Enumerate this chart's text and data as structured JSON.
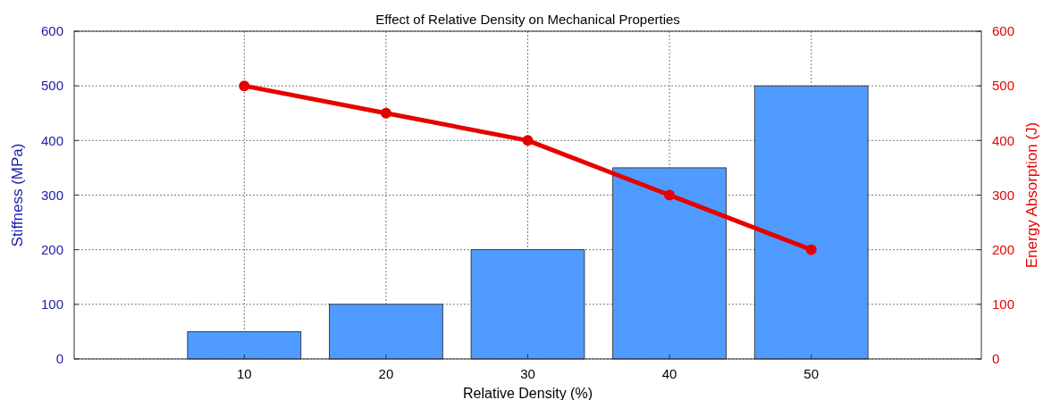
{
  "chart_data": {
    "type": "bar",
    "title": "Effect of Relative Density on Mechanical Properties",
    "xlabel": "Relative Density (%)",
    "ylabel": "Stiffness (MPa)",
    "y2label": "Energy Absorption (J)",
    "x": [
      10,
      20,
      30,
      40,
      50
    ],
    "xlim": [
      -2,
      62
    ],
    "xticks": [
      10,
      20,
      30,
      40,
      50
    ],
    "ylim": [
      0,
      600
    ],
    "yticks": [
      0,
      100,
      200,
      300,
      400,
      500,
      600
    ],
    "y2lim": [
      0,
      600
    ],
    "y2ticks": [
      0,
      100,
      200,
      300,
      400,
      500,
      600
    ],
    "grid": true,
    "series": [
      {
        "color": "#4f9bff",
        "values": [
          50,
          100,
          200,
          350,
          500
        ]
      },
      {
        "type": "line",
        "axis": "y2",
        "color": "#e60000",
        "marker": "circle",
        "values": [
          500,
          450,
          400,
          300,
          200
        ]
      }
    ]
  }
}
